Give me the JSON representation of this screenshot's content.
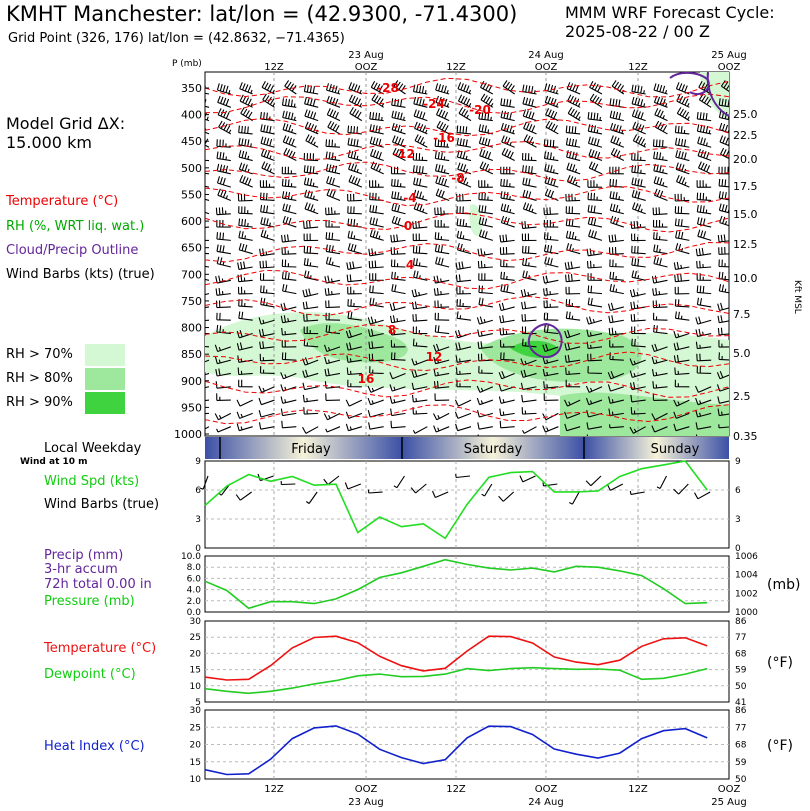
{
  "header": {
    "title": "KMHT Manchester:  lat/lon = (42.9300, -71.4300)",
    "subtitle": "Grid Point (326, 176) lat/lon = (42.8632, −71.4365)",
    "cycle_line1": "MMM WRF Forecast Cycle:",
    "cycle_line2": "2025-08-22 / 00  Z"
  },
  "model_grid": {
    "line1": "Model Grid ΔX:",
    "line2": " 15.000 km"
  },
  "legend": {
    "temperature": "Temperature (°C)",
    "rh": "RH (%, WRT liq. wat.)",
    "cloud": "Cloud/Precip Outline",
    "wind": "Wind Barbs (kts) (true)",
    "rh70": "RH > 70%",
    "rh80": "RH > 80%",
    "rh90": "RH > 90%",
    "rh70_color": "#d4f7d4",
    "rh80_color": "#9ee89e",
    "rh90_color": "#3fd43f"
  },
  "time_axis": {
    "top_hours": [
      "12Z",
      "OOZ",
      "12Z",
      "OOZ",
      "12Z",
      "OOZ"
    ],
    "top_dates": [
      "23 Aug",
      "24 Aug",
      "25 Aug"
    ],
    "bottom_hours": [
      "12Z",
      "OOZ",
      "12Z",
      "OOZ",
      "12Z",
      "OOZ"
    ],
    "bottom_dates": [
      "23 Aug",
      "24 Aug",
      "25 Aug"
    ],
    "weekday_title": "Local Weekday",
    "wind_at": "Wind at 10 m",
    "days": [
      "Friday",
      "Saturday",
      "Sunday"
    ]
  },
  "chart_data": [
    {
      "type": "heatmap",
      "name": "cross-section",
      "yaxis_left_label": "P (mb)",
      "pressure_levels": [
        350,
        400,
        450,
        500,
        550,
        600,
        650,
        700,
        750,
        800,
        850,
        900,
        950,
        1000
      ],
      "yaxis_right_label": "Kft MSL",
      "height_ticks": [
        "25.0",
        "22.5",
        "20.0",
        "17.5",
        "15.0",
        "12.5",
        "10.0",
        "7.5",
        "5.0",
        "2.5",
        "0.35"
      ],
      "temp_labels": [
        "-28",
        "-24",
        "-20",
        "-16",
        "-12",
        "-8",
        "-4",
        "0",
        "4",
        "8",
        "12",
        "16"
      ]
    },
    {
      "type": "line",
      "name": "wind-speed",
      "ylabel1": "Wind Spd (kts)",
      "ylabel2": "Wind Barbs (true)",
      "ylim": [
        0,
        9
      ],
      "yticks": [
        0,
        3,
        6,
        9
      ],
      "values": [
        4.4,
        6.4,
        7.6,
        6.9,
        7.4,
        6.5,
        6.6,
        1.6,
        3.2,
        2.2,
        2.5,
        1.0,
        4.5,
        7.3,
        7.8,
        7.9,
        5.8,
        5.8,
        5.9,
        7.4,
        8.2,
        8.6,
        9.0,
        6.0
      ],
      "color": "#22dd22"
    },
    {
      "type": "line",
      "name": "precip-pressure",
      "precip_label": "Precip (mm)",
      "accum_label": "3-hr accum",
      "total_label": "72h total 0.00 in",
      "pressure_label": "Pressure (mb)",
      "unit_right": "(mb)",
      "precip_ticks": [
        "0.0",
        "2.0",
        "4.0",
        "6.0",
        "8.0",
        "10.0"
      ],
      "pressure_ticks": [
        "1000",
        "1002",
        "1004",
        "1006"
      ],
      "pressure_ylim": [
        1000,
        1006
      ],
      "pressure": [
        1003.3,
        1002.3,
        1000.4,
        1001.1,
        1001.1,
        1000.9,
        1001.4,
        1002.4,
        1003.7,
        1004.2,
        1004.9,
        1005.6,
        1005.1,
        1004.7,
        1004.5,
        1004.7,
        1004.3,
        1004.9,
        1004.8,
        1004.4,
        1003.9,
        1002.5,
        1000.9,
        1001.0
      ],
      "color": "#22cc22"
    },
    {
      "type": "line",
      "name": "temp-dewpoint",
      "series": [
        {
          "name": "Temperature (°C)",
          "color": "#ee1111",
          "values": [
            12.7,
            11.8,
            12.0,
            16.2,
            21.7,
            24.9,
            25.3,
            23.3,
            19.1,
            16.2,
            14.6,
            15.4,
            20.7,
            25.3,
            25.2,
            23.2,
            18.9,
            17.3,
            16.5,
            17.9,
            22.2,
            24.5,
            24.8,
            22.3
          ]
        },
        {
          "name": "Dewpoint (°C)",
          "color": "#22cc22",
          "values": [
            9.1,
            8.3,
            7.7,
            8.3,
            9.3,
            10.6,
            11.6,
            13.1,
            13.6,
            12.8,
            12.9,
            13.6,
            15.3,
            14.7,
            15.3,
            15.6,
            15.3,
            15.1,
            15.2,
            14.8,
            12.0,
            12.3,
            13.6,
            15.3
          ]
        }
      ],
      "ylim": [
        5,
        30
      ],
      "yticks_c": [
        5,
        10,
        15,
        20,
        25,
        30
      ],
      "yticks_f": [
        41,
        50,
        59,
        68,
        77,
        86
      ],
      "unit_right": "(°F)"
    },
    {
      "type": "line",
      "name": "heat-index",
      "series": [
        {
          "name": "Heat Index (°C)",
          "color": "#1122cc",
          "values": [
            12.7,
            11.3,
            11.5,
            15.7,
            21.7,
            24.8,
            25.4,
            23.0,
            18.6,
            16.2,
            14.5,
            15.6,
            21.9,
            25.3,
            25.2,
            22.9,
            18.7,
            17.2,
            16.1,
            17.5,
            21.7,
            24.0,
            24.6,
            21.9
          ]
        }
      ],
      "ylim": [
        10,
        30
      ],
      "yticks_c": [
        10,
        15,
        20,
        25,
        30
      ],
      "yticks_f": [
        50,
        59,
        68,
        77,
        86
      ],
      "unit_right": "(°F)"
    }
  ]
}
